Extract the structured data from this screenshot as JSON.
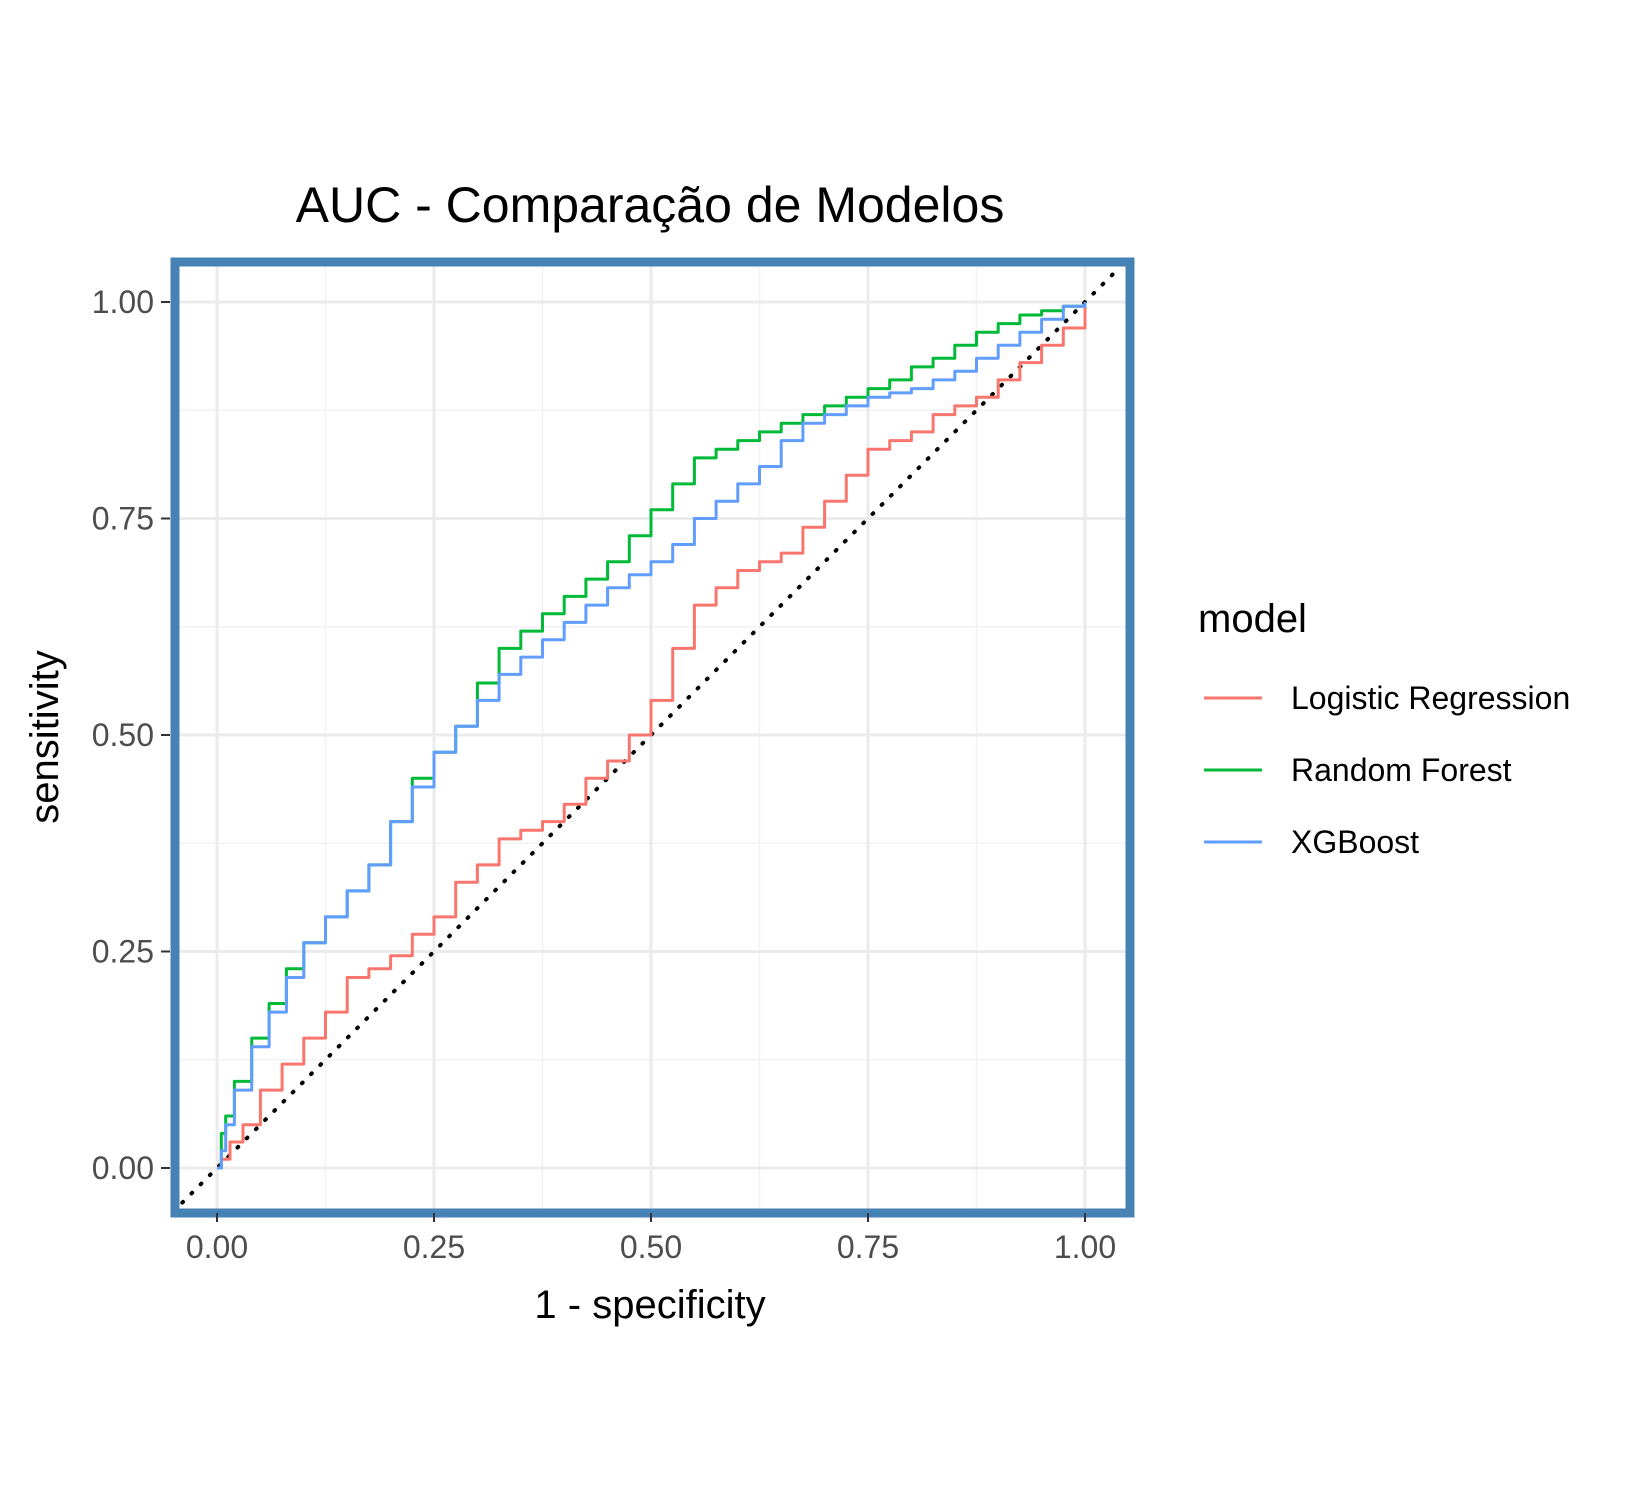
{
  "chart_data": {
    "type": "line",
    "title": "AUC - Comparação de Modelos",
    "xlabel": "1 - specificity",
    "ylabel": "sensitivity",
    "xlim": [
      0,
      1
    ],
    "ylim": [
      0,
      1
    ],
    "x_ticks": [
      "0.00",
      "0.25",
      "0.50",
      "0.75",
      "1.00"
    ],
    "y_ticks": [
      "0.00",
      "0.25",
      "0.50",
      "0.75",
      "1.00"
    ],
    "grid": true,
    "reference_line": {
      "style": "dotted",
      "color": "#000000",
      "from": [
        0,
        0
      ],
      "to": [
        1,
        1
      ]
    },
    "legend": {
      "title": "model",
      "position": "right"
    },
    "panel_border_color": "#4682b4",
    "series": [
      {
        "name": "Logistic Regression",
        "color": "#f8766d",
        "points": [
          [
            0,
            0
          ],
          [
            0.005,
            0.01
          ],
          [
            0.015,
            0.03
          ],
          [
            0.03,
            0.05
          ],
          [
            0.05,
            0.09
          ],
          [
            0.075,
            0.12
          ],
          [
            0.1,
            0.15
          ],
          [
            0.125,
            0.18
          ],
          [
            0.15,
            0.22
          ],
          [
            0.175,
            0.23
          ],
          [
            0.2,
            0.245
          ],
          [
            0.225,
            0.27
          ],
          [
            0.25,
            0.29
          ],
          [
            0.275,
            0.33
          ],
          [
            0.3,
            0.35
          ],
          [
            0.325,
            0.38
          ],
          [
            0.35,
            0.39
          ],
          [
            0.375,
            0.4
          ],
          [
            0.4,
            0.42
          ],
          [
            0.425,
            0.45
          ],
          [
            0.45,
            0.47
          ],
          [
            0.475,
            0.5
          ],
          [
            0.5,
            0.54
          ],
          [
            0.525,
            0.6
          ],
          [
            0.55,
            0.65
          ],
          [
            0.575,
            0.67
          ],
          [
            0.6,
            0.69
          ],
          [
            0.625,
            0.7
          ],
          [
            0.65,
            0.71
          ],
          [
            0.675,
            0.74
          ],
          [
            0.7,
            0.77
          ],
          [
            0.725,
            0.8
          ],
          [
            0.75,
            0.83
          ],
          [
            0.775,
            0.84
          ],
          [
            0.8,
            0.85
          ],
          [
            0.825,
            0.87
          ],
          [
            0.85,
            0.88
          ],
          [
            0.875,
            0.89
          ],
          [
            0.9,
            0.91
          ],
          [
            0.925,
            0.93
          ],
          [
            0.95,
            0.95
          ],
          [
            0.975,
            0.97
          ],
          [
            1.0,
            1.0
          ]
        ]
      },
      {
        "name": "Random Forest",
        "color": "#00ba38",
        "points": [
          [
            0,
            0
          ],
          [
            0.005,
            0.04
          ],
          [
            0.01,
            0.06
          ],
          [
            0.02,
            0.1
          ],
          [
            0.04,
            0.15
          ],
          [
            0.06,
            0.19
          ],
          [
            0.08,
            0.23
          ],
          [
            0.1,
            0.26
          ],
          [
            0.125,
            0.29
          ],
          [
            0.15,
            0.32
          ],
          [
            0.175,
            0.35
          ],
          [
            0.2,
            0.4
          ],
          [
            0.225,
            0.45
          ],
          [
            0.25,
            0.48
          ],
          [
            0.275,
            0.51
          ],
          [
            0.3,
            0.56
          ],
          [
            0.325,
            0.6
          ],
          [
            0.35,
            0.62
          ],
          [
            0.375,
            0.64
          ],
          [
            0.4,
            0.66
          ],
          [
            0.425,
            0.68
          ],
          [
            0.45,
            0.7
          ],
          [
            0.475,
            0.73
          ],
          [
            0.5,
            0.76
          ],
          [
            0.525,
            0.79
          ],
          [
            0.55,
            0.82
          ],
          [
            0.575,
            0.83
          ],
          [
            0.6,
            0.84
          ],
          [
            0.625,
            0.85
          ],
          [
            0.65,
            0.86
          ],
          [
            0.675,
            0.87
          ],
          [
            0.7,
            0.88
          ],
          [
            0.725,
            0.89
          ],
          [
            0.75,
            0.9
          ],
          [
            0.775,
            0.91
          ],
          [
            0.8,
            0.925
          ],
          [
            0.825,
            0.935
          ],
          [
            0.85,
            0.95
          ],
          [
            0.875,
            0.965
          ],
          [
            0.9,
            0.975
          ],
          [
            0.925,
            0.985
          ],
          [
            0.95,
            0.99
          ],
          [
            0.975,
            0.995
          ],
          [
            1.0,
            1.0
          ]
        ]
      },
      {
        "name": "XGBoost",
        "color": "#619cff",
        "points": [
          [
            0,
            0
          ],
          [
            0.005,
            0.02
          ],
          [
            0.01,
            0.05
          ],
          [
            0.02,
            0.09
          ],
          [
            0.04,
            0.14
          ],
          [
            0.06,
            0.18
          ],
          [
            0.08,
            0.22
          ],
          [
            0.1,
            0.26
          ],
          [
            0.125,
            0.29
          ],
          [
            0.15,
            0.32
          ],
          [
            0.175,
            0.35
          ],
          [
            0.2,
            0.4
          ],
          [
            0.225,
            0.44
          ],
          [
            0.25,
            0.48
          ],
          [
            0.275,
            0.51
          ],
          [
            0.3,
            0.54
          ],
          [
            0.325,
            0.57
          ],
          [
            0.35,
            0.59
          ],
          [
            0.375,
            0.61
          ],
          [
            0.4,
            0.63
          ],
          [
            0.425,
            0.65
          ],
          [
            0.45,
            0.67
          ],
          [
            0.475,
            0.685
          ],
          [
            0.5,
            0.7
          ],
          [
            0.525,
            0.72
          ],
          [
            0.55,
            0.75
          ],
          [
            0.575,
            0.77
          ],
          [
            0.6,
            0.79
          ],
          [
            0.625,
            0.81
          ],
          [
            0.65,
            0.84
          ],
          [
            0.675,
            0.86
          ],
          [
            0.7,
            0.87
          ],
          [
            0.725,
            0.88
          ],
          [
            0.75,
            0.89
          ],
          [
            0.775,
            0.895
          ],
          [
            0.8,
            0.9
          ],
          [
            0.825,
            0.91
          ],
          [
            0.85,
            0.92
          ],
          [
            0.875,
            0.935
          ],
          [
            0.9,
            0.95
          ],
          [
            0.925,
            0.965
          ],
          [
            0.95,
            0.98
          ],
          [
            0.975,
            0.995
          ],
          [
            1.0,
            1.0
          ]
        ]
      }
    ]
  }
}
